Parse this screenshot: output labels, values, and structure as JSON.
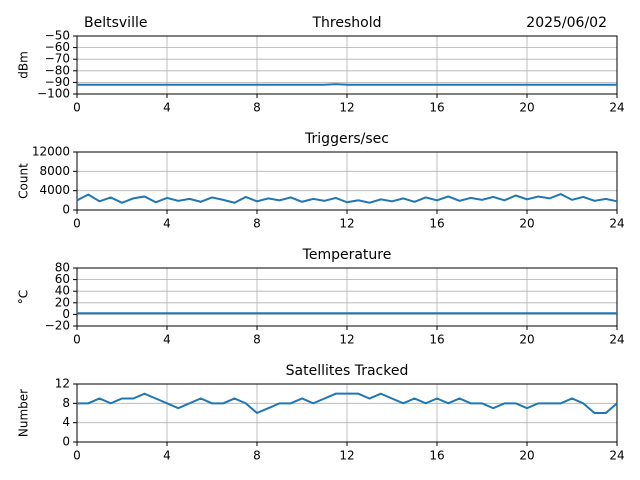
{
  "chart_data": [
    {
      "type": "line",
      "title": "Threshold",
      "title_left": "Beltsville",
      "title_right": "2025/06/02",
      "ylabel": "dBm",
      "color": "#1f77b4",
      "grid": true,
      "xlim": [
        0,
        24
      ],
      "xticks": [
        0,
        4,
        8,
        12,
        16,
        20,
        24
      ],
      "ylim": [
        -100,
        -50
      ],
      "yticks": [
        {
          "value": -100,
          "label": "−100"
        },
        {
          "value": -90,
          "label": "−90"
        },
        {
          "value": -80,
          "label": "−80"
        },
        {
          "value": -70,
          "label": "−70"
        },
        {
          "value": -60,
          "label": "−60"
        },
        {
          "value": -50,
          "label": "−50"
        }
      ],
      "x": [
        0,
        0.5,
        1,
        1.5,
        2,
        2.5,
        3,
        3.5,
        4,
        4.5,
        5,
        5.5,
        6,
        6.5,
        7,
        7.5,
        8,
        8.5,
        9,
        9.5,
        10,
        10.5,
        11,
        11.5,
        12,
        12.5,
        13,
        13.5,
        14,
        14.5,
        15,
        15.5,
        16,
        16.5,
        17,
        17.5,
        18,
        18.5,
        19,
        19.5,
        20,
        20.5,
        21,
        21.5,
        22,
        22.5,
        23,
        23.5,
        24
      ],
      "values": [
        -92,
        -92,
        -92,
        -92,
        -92,
        -92,
        -92,
        -92,
        -92,
        -92,
        -92,
        -92,
        -92,
        -92,
        -92,
        -92,
        -92,
        -92,
        -92,
        -92,
        -92,
        -92,
        -92,
        -91.5,
        -92,
        -92,
        -92,
        -92,
        -92,
        -92,
        -92,
        -92,
        -92,
        -92,
        -92,
        -92,
        -92,
        -92,
        -92,
        -92,
        -92,
        -92,
        -92,
        -92,
        -92,
        -92,
        -92,
        -92,
        -92
      ]
    },
    {
      "type": "line",
      "title": "Triggers/sec",
      "ylabel": "Count",
      "color": "#1f77b4",
      "grid": true,
      "xlim": [
        0,
        24
      ],
      "xticks": [
        0,
        4,
        8,
        12,
        16,
        20,
        24
      ],
      "ylim": [
        0,
        12000
      ],
      "yticks": [
        0,
        4000,
        8000,
        12000
      ],
      "x": [
        0,
        0.5,
        1,
        1.5,
        2,
        2.5,
        3,
        3.5,
        4,
        4.5,
        5,
        5.5,
        6,
        6.5,
        7,
        7.5,
        8,
        8.5,
        9,
        9.5,
        10,
        10.5,
        11,
        11.5,
        12,
        12.5,
        13,
        13.5,
        14,
        14.5,
        15,
        15.5,
        16,
        16.5,
        17,
        17.5,
        18,
        18.5,
        19,
        19.5,
        20,
        20.5,
        21,
        21.5,
        22,
        22.5,
        23,
        23.5,
        24
      ],
      "values": [
        2000,
        3200,
        1800,
        2600,
        1500,
        2400,
        2800,
        1600,
        2500,
        1900,
        2300,
        1700,
        2600,
        2100,
        1500,
        2700,
        1800,
        2400,
        2000,
        2600,
        1700,
        2300,
        1900,
        2500,
        1600,
        2000,
        1500,
        2200,
        1800,
        2400,
        1700,
        2600,
        2000,
        2800,
        1900,
        2500,
        2100,
        2700,
        2000,
        3000,
        2200,
        2800,
        2400,
        3300,
        2100,
        2700,
        1900,
        2300,
        1800
      ]
    },
    {
      "type": "line",
      "title": "Temperature",
      "ylabel": "°C",
      "color": "#1f77b4",
      "grid": true,
      "xlim": [
        0,
        24
      ],
      "xticks": [
        0,
        4,
        8,
        12,
        16,
        20,
        24
      ],
      "ylim": [
        -20,
        80
      ],
      "yticks": [
        {
          "value": -20,
          "label": "−20"
        },
        0,
        20,
        40,
        60,
        80
      ],
      "x": [
        0,
        0.5,
        1,
        1.5,
        2,
        2.5,
        3,
        3.5,
        4,
        4.5,
        5,
        5.5,
        6,
        6.5,
        7,
        7.5,
        8,
        8.5,
        9,
        9.5,
        10,
        10.5,
        11,
        11.5,
        12,
        12.5,
        13,
        13.5,
        14,
        14.5,
        15,
        15.5,
        16,
        16.5,
        17,
        17.5,
        18,
        18.5,
        19,
        19.5,
        20,
        20.5,
        21,
        21.5,
        22,
        22.5,
        23,
        23.5,
        24
      ],
      "values": [
        2,
        2,
        2,
        2,
        2,
        2,
        2,
        2,
        2,
        2,
        2,
        2,
        2,
        2,
        2,
        2,
        2,
        2,
        2,
        2,
        2,
        2,
        2,
        2,
        2,
        2,
        2,
        2,
        2,
        2,
        2,
        2,
        2,
        2,
        2,
        2,
        2,
        2,
        2,
        2,
        2,
        2,
        2,
        2,
        2,
        2,
        2,
        2,
        2
      ]
    },
    {
      "type": "line",
      "title": "Satellites Tracked",
      "ylabel": "Number",
      "color": "#1f77b4",
      "grid": true,
      "xlim": [
        0,
        24
      ],
      "xticks": [
        0,
        4,
        8,
        12,
        16,
        20,
        24
      ],
      "ylim": [
        0,
        12
      ],
      "yticks": [
        0,
        4,
        8,
        12
      ],
      "x": [
        0,
        0.5,
        1,
        1.5,
        2,
        2.5,
        3,
        3.5,
        4,
        4.5,
        5,
        5.5,
        6,
        6.5,
        7,
        7.5,
        8,
        8.5,
        9,
        9.5,
        10,
        10.5,
        11,
        11.5,
        12,
        12.5,
        13,
        13.5,
        14,
        14.5,
        15,
        15.5,
        16,
        16.5,
        17,
        17.5,
        18,
        18.5,
        19,
        19.5,
        20,
        20.5,
        21,
        21.5,
        22,
        22.5,
        23,
        23.5,
        24
      ],
      "values": [
        8,
        8,
        9,
        8,
        9,
        9,
        10,
        9,
        8,
        7,
        8,
        9,
        8,
        8,
        9,
        8,
        6,
        7,
        8,
        8,
        9,
        8,
        9,
        10,
        10,
        10,
        9,
        10,
        9,
        8,
        9,
        8,
        9,
        8,
        9,
        8,
        8,
        7,
        8,
        8,
        7,
        8,
        8,
        8,
        9,
        8,
        6,
        6,
        8
      ]
    }
  ]
}
